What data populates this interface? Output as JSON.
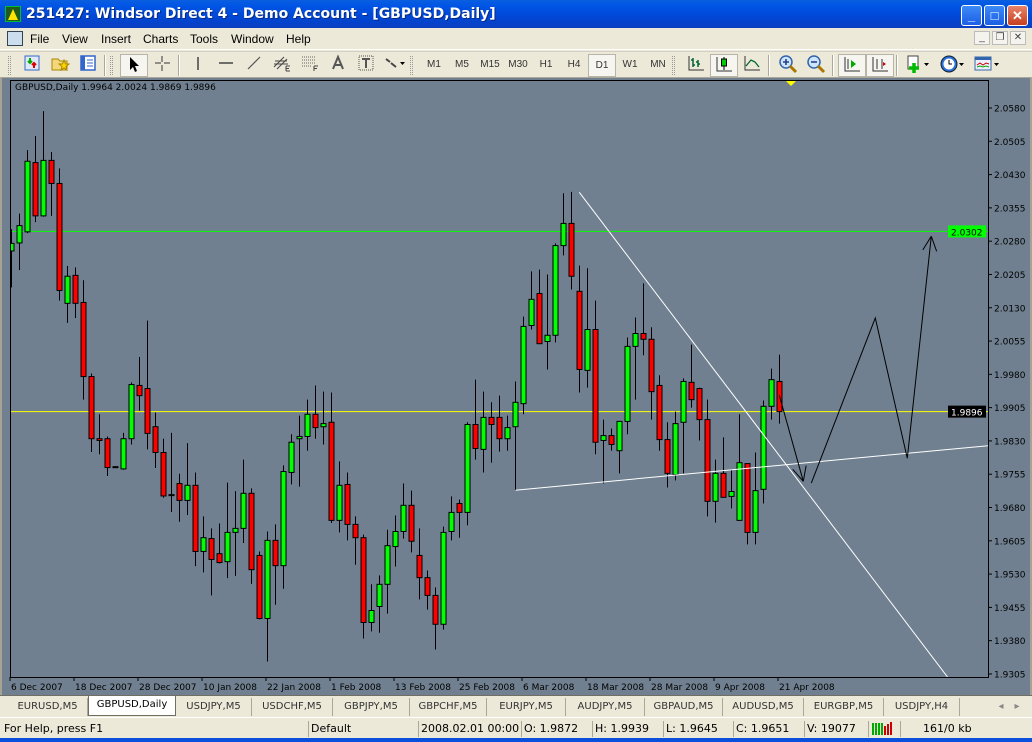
{
  "window": {
    "title": "251427: Windsor Direct 4 - Demo Account - [GBPUSD,Daily]",
    "minimize": "_",
    "maximize": "□",
    "close": "✕"
  },
  "menu": [
    "File",
    "View",
    "Insert",
    "Charts",
    "Tools",
    "Window",
    "Help"
  ],
  "mdi_buttons": [
    "_",
    "❐",
    "✕"
  ],
  "toolbar": [
    {
      "type": "grip"
    },
    {
      "icon": "new-chart-icon"
    },
    {
      "icon": "profiles-icon"
    },
    {
      "icon": "navigator-icon"
    },
    {
      "type": "sep"
    },
    {
      "type": "grip"
    },
    {
      "icon": "cursor-icon",
      "pressed": true
    },
    {
      "icon": "crosshair-icon"
    },
    {
      "type": "sep"
    },
    {
      "icon": "vertical-line-icon"
    },
    {
      "icon": "horizontal-line-icon"
    },
    {
      "icon": "trendline-icon"
    },
    {
      "icon": "equidistant-channel-icon"
    },
    {
      "icon": "fibonacci-icon"
    },
    {
      "icon": "text-icon"
    },
    {
      "icon": "text-label-icon"
    },
    {
      "icon": "arrows-dropdown-icon"
    },
    {
      "type": "grip"
    },
    {
      "label": "M1"
    },
    {
      "label": "M5"
    },
    {
      "label": "M15"
    },
    {
      "label": "M30"
    },
    {
      "label": "H1"
    },
    {
      "label": "H4"
    },
    {
      "label": "D1",
      "pressed": true
    },
    {
      "label": "W1"
    },
    {
      "label": "MN"
    },
    {
      "type": "grip"
    },
    {
      "icon": "bar-chart-icon"
    },
    {
      "icon": "candlestick-chart-icon",
      "pressed": true
    },
    {
      "icon": "line-chart-icon"
    },
    {
      "type": "sep"
    },
    {
      "icon": "zoom-in-icon"
    },
    {
      "icon": "zoom-out-icon"
    },
    {
      "type": "sep"
    },
    {
      "icon": "auto-scroll-icon",
      "pressed": true
    },
    {
      "icon": "chart-shift-icon",
      "pressed": true
    },
    {
      "type": "sep"
    },
    {
      "icon": "indicators-dropdown-icon"
    },
    {
      "icon": "periods-dropdown-icon"
    },
    {
      "icon": "templates-dropdown-icon"
    }
  ],
  "chart": {
    "info": "GBPUSD,Daily  1.9964 2.0024 1.9869 1.9896",
    "background": "#708090",
    "bull_color": "#00ff00",
    "bear_color": "#ff0000"
  },
  "chart_data": {
    "type": "candlestick",
    "symbol": "GBPUSD",
    "timeframe": "Daily",
    "ylim": [
      1.9305,
      2.058
    ],
    "y_ticks": [
      "2.0580",
      "2.0505",
      "2.0430",
      "2.0355",
      "2.0280",
      "2.0205",
      "2.0130",
      "2.0055",
      "1.9980",
      "1.9905",
      "1.9830",
      "1.9755",
      "1.9680",
      "1.9605",
      "1.9530",
      "1.9455",
      "1.9380",
      "1.9305"
    ],
    "x_ticks": [
      {
        "date": "2007.12.06",
        "label": "6 Dec 2007"
      },
      {
        "date": "2007.12.18",
        "label": "18 Dec 2007"
      },
      {
        "date": "2007.12.28",
        "label": "28 Dec 2007"
      },
      {
        "date": "2008.01.10",
        "label": "10 Jan 2008"
      },
      {
        "date": "2008.01.22",
        "label": "22 Jan 2008"
      },
      {
        "date": "2008.02.01",
        "label": "1 Feb 2008"
      },
      {
        "date": "2008.02.13",
        "label": "13 Feb 2008"
      },
      {
        "date": "2008.02.25",
        "label": "25 Feb 2008"
      },
      {
        "date": "2008.03.06",
        "label": "6 Mar 2008"
      },
      {
        "date": "2008.03.18",
        "label": "18 Mar 2008"
      },
      {
        "date": "2008.03.28",
        "label": "28 Mar 2008"
      },
      {
        "date": "2008.04.09",
        "label": "9 Apr 2008"
      },
      {
        "date": "2008.04.21",
        "label": "21 Apr 2008"
      }
    ],
    "columns": [
      "date",
      "open",
      "high",
      "low",
      "close"
    ],
    "candles": [
      [
        "2007.12.06",
        2.0258,
        2.0307,
        2.0176,
        2.0275
      ],
      [
        "2007.12.07",
        2.0276,
        2.0342,
        2.0215,
        2.0315
      ],
      [
        "2007.12.10",
        2.0301,
        2.0485,
        2.0298,
        2.046
      ],
      [
        "2007.12.11",
        2.0457,
        2.0517,
        2.0323,
        2.0337
      ],
      [
        "2007.12.12",
        2.0337,
        2.0573,
        2.0335,
        2.0462
      ],
      [
        "2007.12.13",
        2.0462,
        2.0481,
        2.0337,
        2.041
      ],
      [
        "2007.12.14",
        2.041,
        2.0444,
        2.0146,
        2.0169
      ],
      [
        "2007.12.17",
        2.014,
        2.0224,
        2.0096,
        2.0201
      ],
      [
        "2007.12.18",
        2.0203,
        2.0221,
        2.0107,
        2.014
      ],
      [
        "2007.12.19",
        2.0142,
        2.0192,
        1.9923,
        1.9975
      ],
      [
        "2007.12.20",
        1.9975,
        1.9982,
        1.9805,
        1.9835
      ],
      [
        "2007.12.21",
        1.9835,
        1.989,
        1.98,
        1.9831
      ],
      [
        "2007.12.24",
        1.9835,
        1.984,
        1.9751,
        1.977
      ],
      [
        "2007.12.25",
        1.9772,
        1.9773,
        1.977,
        1.9771
      ],
      [
        "2007.12.26",
        1.9767,
        1.9848,
        1.9765,
        1.9835
      ],
      [
        "2007.12.27",
        1.9835,
        1.9962,
        1.9822,
        1.9957
      ],
      [
        "2007.12.28",
        1.9955,
        2.0019,
        1.9898,
        1.9932
      ],
      [
        "2007.12.31",
        1.9948,
        2.0101,
        1.9811,
        1.9847
      ],
      [
        "2008.01.02",
        1.9862,
        1.9894,
        1.9769,
        1.9804
      ],
      [
        "2008.01.03",
        1.9804,
        1.9835,
        1.9702,
        1.9706
      ],
      [
        "2008.01.04",
        1.9709,
        1.9848,
        1.967,
        1.9709
      ],
      [
        "2008.01.07",
        1.9734,
        1.9756,
        1.9648,
        1.9696
      ],
      [
        "2008.01.08",
        1.9696,
        1.9825,
        1.9663,
        1.973
      ],
      [
        "2008.01.09",
        1.973,
        1.9759,
        1.9548,
        1.9581
      ],
      [
        "2008.01.10",
        1.9581,
        1.966,
        1.9534,
        1.9612
      ],
      [
        "2008.01.11",
        1.961,
        1.9633,
        1.9482,
        1.9563
      ],
      [
        "2008.01.14",
        1.9576,
        1.9644,
        1.9554,
        1.9556
      ],
      [
        "2008.01.15",
        1.9558,
        1.9736,
        1.9521,
        1.9624
      ],
      [
        "2008.01.16",
        1.9624,
        1.9717,
        1.9526,
        1.9633
      ],
      [
        "2008.01.17",
        1.9633,
        1.9788,
        1.96,
        1.9712
      ],
      [
        "2008.01.18",
        1.9712,
        1.9723,
        1.9508,
        1.954
      ],
      [
        "2008.01.21",
        1.9572,
        1.9581,
        1.9428,
        1.943
      ],
      [
        "2008.01.22",
        1.943,
        1.9626,
        1.9333,
        1.9606
      ],
      [
        "2008.01.23",
        1.9606,
        1.9642,
        1.9461,
        1.9549
      ],
      [
        "2008.01.24",
        1.9549,
        1.9775,
        1.9497,
        1.9761
      ],
      [
        "2008.01.25",
        1.9759,
        1.9845,
        1.9732,
        1.9827
      ],
      [
        "2008.01.28",
        1.9835,
        1.9887,
        1.9727,
        1.984
      ],
      [
        "2008.01.29",
        1.984,
        1.9923,
        1.9808,
        1.989
      ],
      [
        "2008.01.30",
        1.989,
        1.9955,
        1.9835,
        1.986
      ],
      [
        "2008.01.31",
        1.9862,
        1.9941,
        1.9822,
        1.9869
      ],
      [
        "2008.02.01",
        1.9872,
        1.9939,
        1.9645,
        1.9651
      ],
      [
        "2008.02.04",
        1.9651,
        1.9784,
        1.9624,
        1.973
      ],
      [
        "2008.02.05",
        1.9732,
        1.9759,
        1.9606,
        1.9642
      ],
      [
        "2008.02.06",
        1.9642,
        1.966,
        1.9551,
        1.9612
      ],
      [
        "2008.02.07",
        1.9612,
        1.9619,
        1.9385,
        1.9421
      ],
      [
        "2008.02.08",
        1.9421,
        1.9507,
        1.9401,
        1.9448
      ],
      [
        "2008.02.11",
        1.9457,
        1.9527,
        1.9398,
        1.9507
      ],
      [
        "2008.02.12",
        1.9507,
        1.963,
        1.9441,
        1.9594
      ],
      [
        "2008.02.13",
        1.9592,
        1.9662,
        1.9547,
        1.9626
      ],
      [
        "2008.02.14",
        1.9626,
        1.9734,
        1.961,
        1.9685
      ],
      [
        "2008.02.15",
        1.9685,
        1.9718,
        1.9579,
        1.9604
      ],
      [
        "2008.02.18",
        1.9572,
        1.9633,
        1.9473,
        1.9522
      ],
      [
        "2008.02.19",
        1.9522,
        1.9538,
        1.945,
        1.9482
      ],
      [
        "2008.02.20",
        1.9482,
        1.95,
        1.936,
        1.9417
      ],
      [
        "2008.02.21",
        1.9417,
        1.9637,
        1.9405,
        1.9624
      ],
      [
        "2008.02.22",
        1.9626,
        1.9705,
        1.9606,
        1.9669
      ],
      [
        "2008.02.25",
        1.9689,
        1.9698,
        1.9612,
        1.9669
      ],
      [
        "2008.02.26",
        1.9669,
        1.9872,
        1.964,
        1.9867
      ],
      [
        "2008.02.27",
        1.9867,
        1.9968,
        1.9788,
        1.9813
      ],
      [
        "2008.02.28",
        1.9811,
        1.9941,
        1.9759,
        1.9883
      ],
      [
        "2008.02.29",
        1.9883,
        1.9917,
        1.9781,
        1.9867
      ],
      [
        "2008.03.03",
        1.9883,
        1.9932,
        1.9806,
        1.9835
      ],
      [
        "2008.03.04",
        1.9835,
        1.9887,
        1.9808,
        1.986
      ],
      [
        "2008.03.05",
        1.9862,
        1.9964,
        1.9718,
        1.9917
      ],
      [
        "2008.03.06",
        1.9914,
        2.011,
        1.989,
        2.0088
      ],
      [
        "2008.03.07",
        2.009,
        2.0212,
        2.0081,
        2.0149
      ],
      [
        "2008.03.10",
        2.0162,
        2.0216,
        2.0049,
        2.0049
      ],
      [
        "2008.03.11",
        2.0054,
        2.0205,
        1.9991,
        2.0068
      ],
      [
        "2008.03.12",
        2.0068,
        2.0275,
        2.0052,
        2.027
      ],
      [
        "2008.03.13",
        2.027,
        2.0388,
        2.0248,
        2.032
      ],
      [
        "2008.03.14",
        2.032,
        2.0391,
        2.0171,
        2.0201
      ],
      [
        "2008.03.17",
        2.0167,
        2.0225,
        1.9939,
        1.9991
      ],
      [
        "2008.03.18",
        1.9989,
        2.0219,
        1.995,
        2.0081
      ],
      [
        "2008.03.19",
        2.0081,
        2.0146,
        1.98,
        1.9827
      ],
      [
        "2008.03.20",
        1.9831,
        1.9878,
        1.9734,
        1.9842
      ],
      [
        "2008.03.21",
        1.9842,
        1.9858,
        1.9808,
        1.9822
      ],
      [
        "2008.03.24",
        1.9808,
        1.9874,
        1.9757,
        1.9874
      ],
      [
        "2008.03.25",
        1.9874,
        2.0063,
        1.9845,
        2.0043
      ],
      [
        "2008.03.26",
        2.0043,
        2.0108,
        1.9923,
        2.0072
      ],
      [
        "2008.03.27",
        2.0072,
        2.0185,
        2.0023,
        2.0059
      ],
      [
        "2008.03.28",
        2.0059,
        2.0086,
        1.9878,
        1.9941
      ],
      [
        "2008.03.31",
        1.9955,
        1.9978,
        1.9808,
        1.9833
      ],
      [
        "2008.04.01",
        1.9833,
        1.9872,
        1.9725,
        1.9757
      ],
      [
        "2008.04.02",
        1.9754,
        1.9896,
        1.9741,
        1.9869
      ],
      [
        "2008.04.03",
        1.9872,
        1.9971,
        1.9757,
        1.9964
      ],
      [
        "2008.04.04",
        1.9962,
        2.0047,
        1.9905,
        1.9923
      ],
      [
        "2008.04.07",
        1.9948,
        1.995,
        1.9831,
        1.9878
      ],
      [
        "2008.04.08",
        1.9878,
        1.9923,
        1.966,
        1.9694
      ],
      [
        "2008.04.09",
        1.9694,
        1.9788,
        1.9646,
        1.9757
      ],
      [
        "2008.04.10",
        1.9757,
        1.9838,
        1.9703,
        1.9703
      ],
      [
        "2008.04.11",
        1.9705,
        1.9766,
        1.9678,
        1.9716
      ],
      [
        "2008.04.14",
        1.9651,
        1.989,
        1.9651,
        1.9781
      ],
      [
        "2008.04.15",
        1.9779,
        1.9779,
        1.9597,
        1.9624
      ],
      [
        "2008.04.16",
        1.9624,
        1.9804,
        1.9597,
        1.9718
      ],
      [
        "2008.04.17",
        1.9721,
        1.9921,
        1.9689,
        1.9908
      ],
      [
        "2008.04.18",
        1.9908,
        1.9993,
        1.9878,
        1.9968
      ],
      [
        "2008.04.21",
        1.9964,
        2.0024,
        1.9869,
        1.9896
      ]
    ],
    "horizontal_lines": [
      {
        "name": "horizontal-line",
        "price": 2.0302,
        "label": "2.0302",
        "color": "#00ff00",
        "label_text_color": "#00c000"
      },
      {
        "name": "bid-line",
        "price": 1.9896,
        "label": "1.9896",
        "color": "#ffff00",
        "label_bg": "#000000",
        "label_text_color": "#ffffff"
      }
    ],
    "trendlines": [
      {
        "name": "support-trendline",
        "color": "#ffffff",
        "ray": true,
        "points": [
          [
            "2008.03.05",
            1.9719
          ],
          [
            "2008.04.21",
            1.9775
          ]
        ]
      },
      {
        "name": "resistance-trendline",
        "color": "#ffffff",
        "ray": true,
        "points": [
          [
            "2008.03.17",
            2.039
          ],
          [
            "2008.04.21",
            1.9797
          ]
        ]
      },
      {
        "name": "down-arrow-drawing",
        "color": "#000000",
        "ray": false,
        "arrowhead": true,
        "points": [
          [
            "2008.04.21",
            1.9933
          ],
          [
            "2008.04.24",
            1.9739
          ]
        ]
      },
      {
        "name": "zigzag-forecast-drawing",
        "color": "#000000",
        "ray": false,
        "arrowhead": true,
        "points": [
          [
            "2008.04.25",
            1.9735
          ],
          [
            "2008.05.07",
            2.0107
          ],
          [
            "2008.05.13",
            1.9791
          ],
          [
            "2008.05.16",
            2.0291
          ]
        ]
      }
    ]
  },
  "tabs": [
    {
      "label": "EURUSD,M5"
    },
    {
      "label": "GBPUSD,Daily",
      "active": true
    },
    {
      "label": "USDJPY,M5"
    },
    {
      "label": "USDCHF,M5"
    },
    {
      "label": "GBPJPY,M5"
    },
    {
      "label": "GBPCHF,M5"
    },
    {
      "label": "EURJPY,M5"
    },
    {
      "label": "AUDJPY,M5"
    },
    {
      "label": "GBPAUD,M5"
    },
    {
      "label": "AUDUSD,M5"
    },
    {
      "label": "EURGBP,M5"
    },
    {
      "label": "USDJPY,H4"
    }
  ],
  "tab_scroll": [
    "◂",
    "▸"
  ],
  "status": {
    "help": "For Help, press F1",
    "profile": "Default",
    "datetime": "2008.02.01 00:00",
    "open": "O: 1.9872",
    "high": "H: 1.9939",
    "low": "L: 1.9645",
    "close": "C: 1.9651",
    "volume": "V: 19077",
    "traffic": "161/0 kb"
  }
}
